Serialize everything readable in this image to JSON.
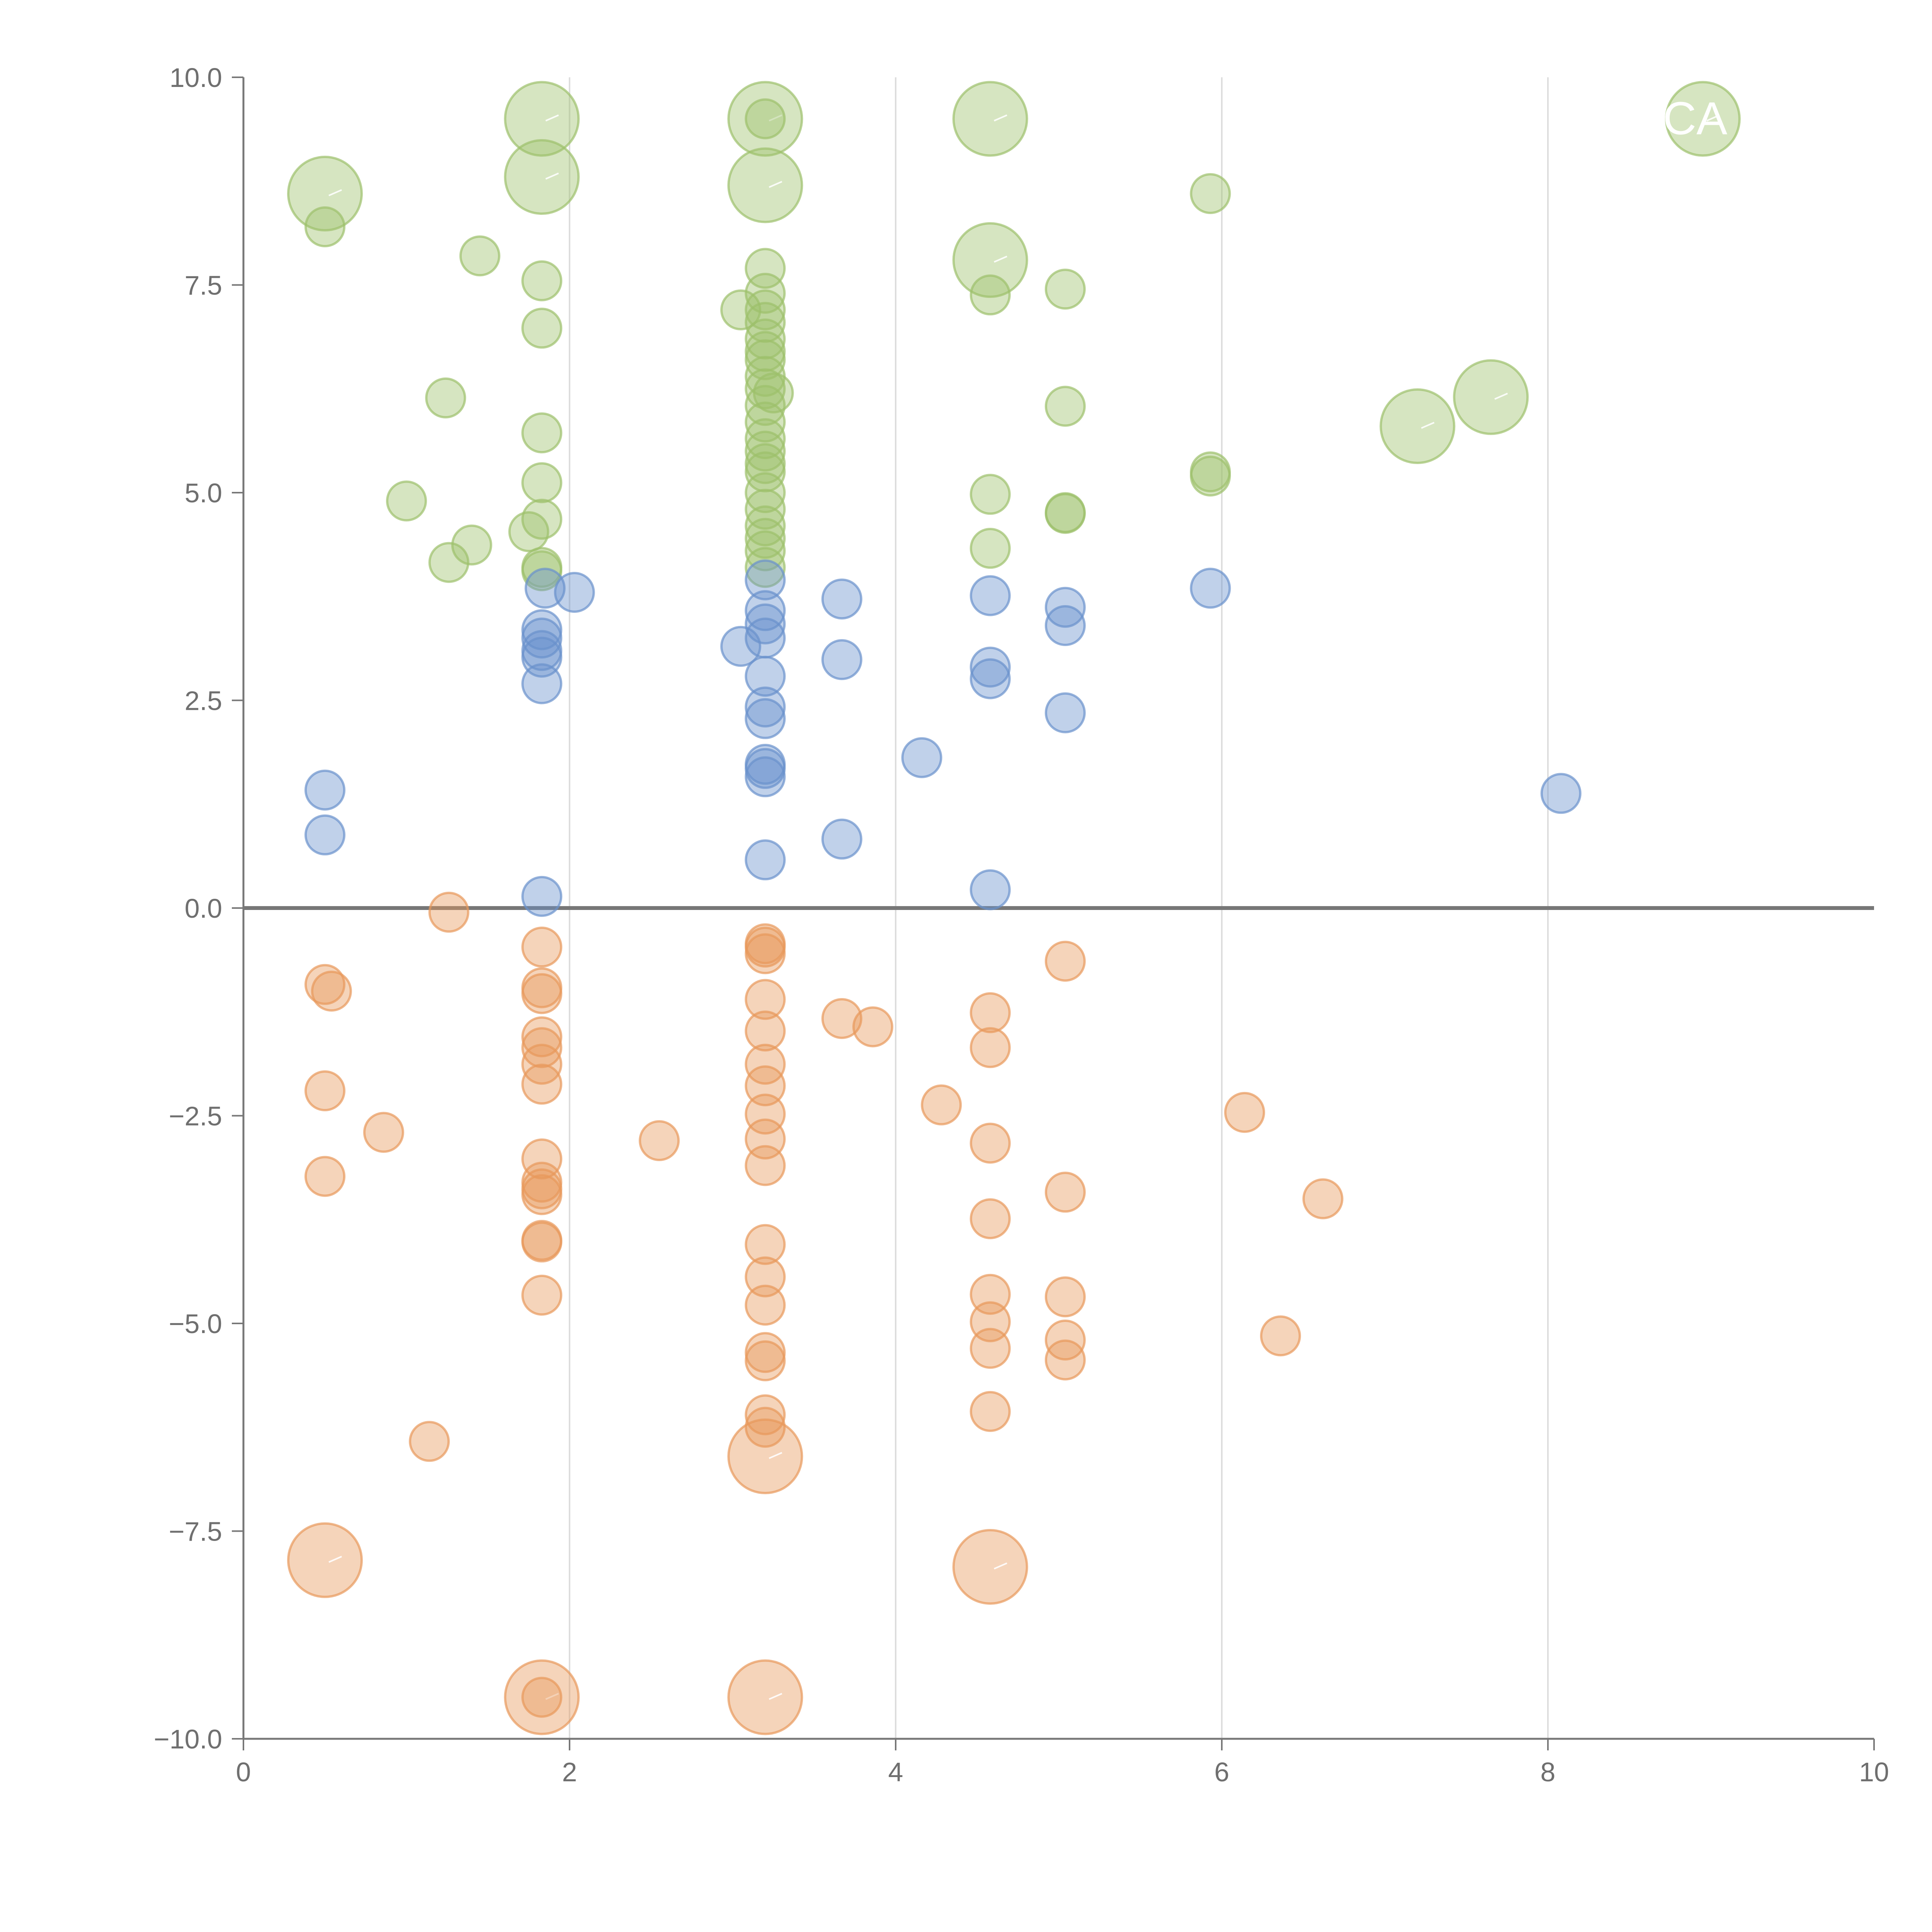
{
  "chart_data": {
    "type": "scatter",
    "title": "",
    "xlabel": "",
    "ylabel": "",
    "xlim": [
      0,
      10
    ],
    "ylim": [
      -10,
      10
    ],
    "x_ticks": [
      0,
      2,
      4,
      6,
      8,
      10
    ],
    "x_tick_labels": [
      "0",
      "2",
      "4",
      "6",
      "8",
      "10"
    ],
    "y_ticks": [
      10,
      7.5,
      5,
      2.5,
      0,
      -2.5,
      -5,
      -7.5,
      -10
    ],
    "y_tick_labels": [
      "10.0",
      "7.5",
      "5.0",
      "2.5",
      "0.0",
      "−2.5",
      "−5.0",
      "−7.5",
      "−10.0"
    ],
    "grid": "vertical",
    "legend": "none",
    "reference_line_y": 0,
    "colors": {
      "green": "#9dc16b",
      "blue": "#6a92cc",
      "orange": "#e8995b"
    },
    "labels": [
      {
        "text": "CA",
        "x": 8.95,
        "y": 9.5
      }
    ],
    "series": [
      {
        "name": "green",
        "points": [
          [
            1.83,
            9.5,
            "L"
          ],
          [
            3.2,
            9.5,
            "L"
          ],
          [
            4.58,
            9.5,
            "L"
          ],
          [
            8.95,
            9.5,
            "L"
          ],
          [
            3.2,
            9.5,
            "S"
          ],
          [
            1.83,
            8.8,
            "L"
          ],
          [
            3.2,
            8.7,
            "L"
          ],
          [
            0.5,
            8.6,
            "L"
          ],
          [
            0.5,
            8.2,
            "S"
          ],
          [
            5.93,
            8.6,
            "S"
          ],
          [
            1.45,
            7.85,
            "S"
          ],
          [
            1.83,
            7.55,
            "S"
          ],
          [
            4.58,
            7.8,
            "L"
          ],
          [
            4.58,
            7.38,
            "S"
          ],
          [
            5.04,
            7.45,
            "S"
          ],
          [
            3.2,
            7.7,
            "S"
          ],
          [
            3.2,
            7.4,
            "S"
          ],
          [
            3.2,
            7.2,
            "S"
          ],
          [
            3.2,
            7.05,
            "S"
          ],
          [
            3.2,
            6.85,
            "S"
          ],
          [
            3.2,
            6.7,
            "S"
          ],
          [
            3.2,
            6.6,
            "S"
          ],
          [
            3.2,
            6.4,
            "S"
          ],
          [
            3.2,
            6.25,
            "S"
          ],
          [
            3.25,
            6.2,
            "S"
          ],
          [
            3.2,
            6.05,
            "S"
          ],
          [
            3.2,
            5.85,
            "S"
          ],
          [
            3.2,
            5.65,
            "S"
          ],
          [
            3.2,
            5.5,
            "S"
          ],
          [
            3.2,
            5.35,
            "S"
          ],
          [
            3.2,
            5.25,
            "S"
          ],
          [
            3.2,
            5.0,
            "S"
          ],
          [
            3.2,
            4.8,
            "S"
          ],
          [
            3.2,
            4.6,
            "S"
          ],
          [
            3.2,
            4.45,
            "S"
          ],
          [
            3.2,
            4.3,
            "S"
          ],
          [
            3.2,
            4.1,
            "S"
          ],
          [
            3.05,
            7.2,
            "S"
          ],
          [
            1.83,
            6.98,
            "S"
          ],
          [
            1.24,
            6.14,
            "S"
          ],
          [
            5.04,
            6.04,
            "S"
          ],
          [
            7.2,
            5.8,
            "L"
          ],
          [
            7.65,
            6.15,
            "L"
          ],
          [
            1.83,
            5.72,
            "S"
          ],
          [
            5.93,
            5.25,
            "S"
          ],
          [
            5.93,
            5.2,
            "S"
          ],
          [
            1.83,
            5.12,
            "S"
          ],
          [
            1.0,
            4.9,
            "S"
          ],
          [
            4.58,
            4.98,
            "S"
          ],
          [
            5.04,
            4.76,
            "S"
          ],
          [
            5.04,
            4.75,
            "S"
          ],
          [
            1.83,
            4.68,
            "S"
          ],
          [
            1.75,
            4.53,
            "S"
          ],
          [
            1.4,
            4.37,
            "S"
          ],
          [
            4.58,
            4.33,
            "S"
          ],
          [
            1.26,
            4.16,
            "S"
          ],
          [
            1.83,
            4.1,
            "S"
          ],
          [
            1.83,
            4.06,
            "S"
          ]
        ]
      },
      {
        "name": "blue",
        "points": [
          [
            3.2,
            3.95,
            "S"
          ],
          [
            1.85,
            3.85,
            "S"
          ],
          [
            2.03,
            3.8,
            "S"
          ],
          [
            3.67,
            3.72,
            "S"
          ],
          [
            4.58,
            3.76,
            "S"
          ],
          [
            5.93,
            3.85,
            "S"
          ],
          [
            5.04,
            3.62,
            "S"
          ],
          [
            5.04,
            3.4,
            "S"
          ],
          [
            3.2,
            3.58,
            "S"
          ],
          [
            3.2,
            3.42,
            "S"
          ],
          [
            3.2,
            3.25,
            "S"
          ],
          [
            3.05,
            3.15,
            "S"
          ],
          [
            1.83,
            3.35,
            "S"
          ],
          [
            1.83,
            3.25,
            "S"
          ],
          [
            1.83,
            3.1,
            "S"
          ],
          [
            1.83,
            3.02,
            "S"
          ],
          [
            3.67,
            2.99,
            "S"
          ],
          [
            4.58,
            2.9,
            "S"
          ],
          [
            4.58,
            2.76,
            "S"
          ],
          [
            3.2,
            2.79,
            "S"
          ],
          [
            1.83,
            2.7,
            "S"
          ],
          [
            3.2,
            2.42,
            "S"
          ],
          [
            3.2,
            2.28,
            "S"
          ],
          [
            5.04,
            2.35,
            "S"
          ],
          [
            4.16,
            1.81,
            "S"
          ],
          [
            3.2,
            1.73,
            "S"
          ],
          [
            3.2,
            1.68,
            "S"
          ],
          [
            3.2,
            1.58,
            "S"
          ],
          [
            0.5,
            1.42,
            "S"
          ],
          [
            0.5,
            0.88,
            "S"
          ],
          [
            8.08,
            1.38,
            "S"
          ],
          [
            3.67,
            0.83,
            "S"
          ],
          [
            3.2,
            0.58,
            "S"
          ],
          [
            1.83,
            0.14,
            "S"
          ],
          [
            4.58,
            0.22,
            "S"
          ]
        ]
      },
      {
        "name": "orange",
        "points": [
          [
            1.26,
            -0.05,
            "S"
          ],
          [
            1.83,
            -0.47,
            "S"
          ],
          [
            3.2,
            -0.43,
            "S"
          ],
          [
            3.2,
            -0.47,
            "S"
          ],
          [
            3.2,
            -0.55,
            "S"
          ],
          [
            5.04,
            -0.64,
            "S"
          ],
          [
            0.5,
            -0.92,
            "S"
          ],
          [
            0.54,
            -1.0,
            "S"
          ],
          [
            1.83,
            -0.96,
            "S"
          ],
          [
            1.83,
            -1.03,
            "S"
          ],
          [
            3.2,
            -1.1,
            "S"
          ],
          [
            3.67,
            -1.33,
            "S"
          ],
          [
            3.86,
            -1.43,
            "S"
          ],
          [
            3.2,
            -1.48,
            "S"
          ],
          [
            4.58,
            -1.26,
            "S"
          ],
          [
            4.58,
            -1.68,
            "S"
          ],
          [
            1.83,
            -1.55,
            "S"
          ],
          [
            1.83,
            -1.68,
            "S"
          ],
          [
            1.83,
            -1.88,
            "S"
          ],
          [
            1.83,
            -2.12,
            "S"
          ],
          [
            3.2,
            -1.88,
            "S"
          ],
          [
            3.2,
            -2.14,
            "S"
          ],
          [
            0.5,
            -2.2,
            "S"
          ],
          [
            0.86,
            -2.7,
            "S"
          ],
          [
            4.28,
            -2.37,
            "S"
          ],
          [
            6.14,
            -2.46,
            "S"
          ],
          [
            3.2,
            -2.48,
            "S"
          ],
          [
            2.55,
            -2.8,
            "S"
          ],
          [
            3.2,
            -2.78,
            "S"
          ],
          [
            4.58,
            -2.83,
            "S"
          ],
          [
            1.83,
            -3.02,
            "S"
          ],
          [
            3.2,
            -3.1,
            "S"
          ],
          [
            0.5,
            -3.23,
            "S"
          ],
          [
            1.83,
            -3.3,
            "S"
          ],
          [
            1.83,
            -3.38,
            "S"
          ],
          [
            1.83,
            -3.45,
            "S"
          ],
          [
            5.04,
            -3.42,
            "S"
          ],
          [
            6.62,
            -3.5,
            "S"
          ],
          [
            4.58,
            -3.74,
            "S"
          ],
          [
            1.83,
            -4.0,
            "S"
          ],
          [
            1.83,
            -4.02,
            "S"
          ],
          [
            3.2,
            -4.05,
            "S"
          ],
          [
            3.2,
            -4.44,
            "S"
          ],
          [
            1.83,
            -4.66,
            "S"
          ],
          [
            4.58,
            -4.65,
            "S"
          ],
          [
            5.04,
            -4.68,
            "S"
          ],
          [
            3.2,
            -4.78,
            "S"
          ],
          [
            4.58,
            -4.98,
            "S"
          ],
          [
            6.36,
            -5.15,
            "S"
          ],
          [
            5.04,
            -5.2,
            "S"
          ],
          [
            4.58,
            -5.3,
            "S"
          ],
          [
            3.2,
            -5.35,
            "S"
          ],
          [
            3.2,
            -5.45,
            "S"
          ],
          [
            5.04,
            -5.44,
            "S"
          ],
          [
            4.58,
            -6.06,
            "S"
          ],
          [
            3.2,
            -6.1,
            "S"
          ],
          [
            3.2,
            -6.25,
            "S"
          ],
          [
            3.2,
            -6.6,
            "L"
          ],
          [
            1.14,
            -6.42,
            "S"
          ],
          [
            0.5,
            -7.85,
            "L"
          ],
          [
            4.58,
            -7.93,
            "L"
          ],
          [
            1.83,
            -9.5,
            "L"
          ],
          [
            1.83,
            -9.5,
            "S"
          ],
          [
            3.2,
            -9.5,
            "L"
          ]
        ]
      }
    ]
  }
}
